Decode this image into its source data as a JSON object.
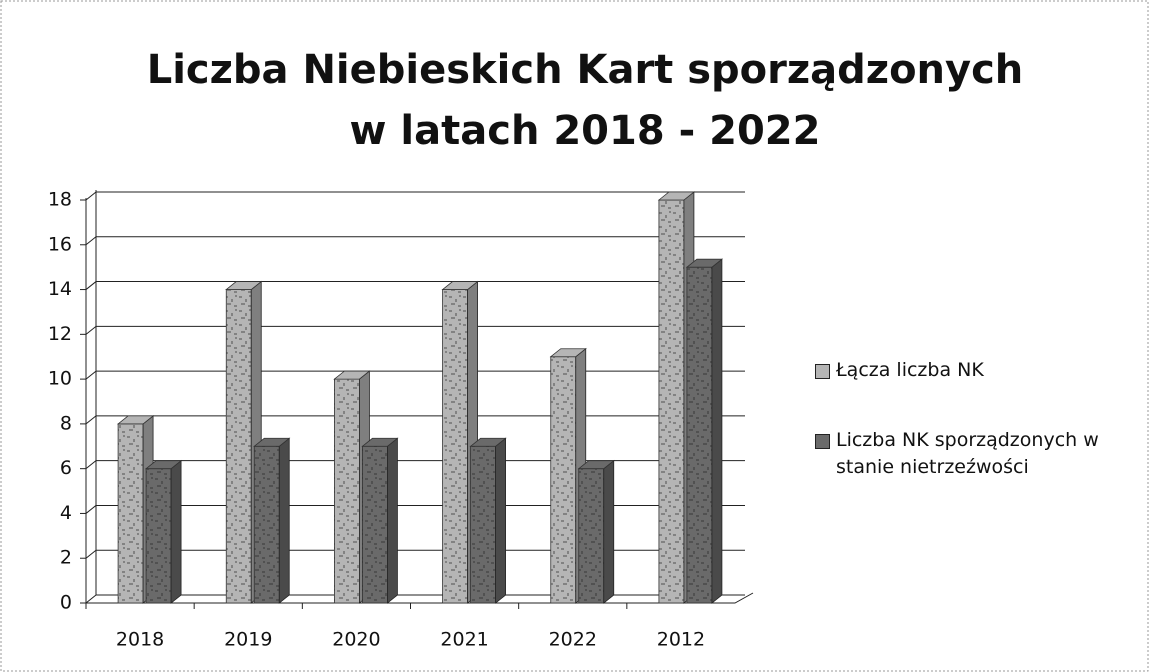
{
  "chart_data": {
    "type": "bar3d",
    "title": [
      "Liczba Niebieskich Kart sporządzonych",
      "w latach 2018 - 2022"
    ],
    "categories": [
      "2018",
      "2019",
      "2020",
      "2021",
      "2022",
      "2012"
    ],
    "series": [
      {
        "name": "Łącza liczba NK",
        "color": "#b5b5b5",
        "values": [
          8,
          14,
          10,
          14,
          11,
          18
        ]
      },
      {
        "name": "Liczba NK sporządzonych w stanie nietrzeźwości",
        "color": "#6a6a6a",
        "values": [
          6,
          7,
          7,
          7,
          6,
          15
        ]
      }
    ],
    "ylim": [
      0,
      18
    ],
    "yticks": [
      0,
      2,
      4,
      6,
      8,
      10,
      12,
      14,
      16,
      18
    ],
    "grid": true,
    "legend": "right"
  }
}
